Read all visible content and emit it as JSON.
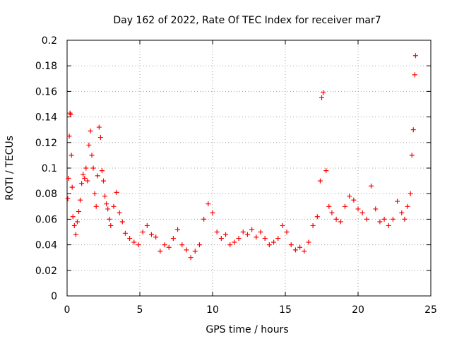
{
  "chart_data": {
    "type": "scatter",
    "title": "Day 162 of 2022, Rate Of TEC Index for receiver mar7",
    "xlabel": "GPS time / hours",
    "ylabel": "ROTI / TECUs",
    "xlim": [
      0,
      25
    ],
    "ylim": [
      0,
      0.2
    ],
    "xticks": [
      0,
      5,
      10,
      15,
      20,
      25
    ],
    "xtick_labels": [
      "0",
      "5",
      "10",
      "15",
      "20",
      "25"
    ],
    "yticks": [
      0,
      0.02,
      0.04,
      0.06,
      0.08,
      0.1,
      0.12,
      0.14,
      0.16,
      0.18,
      0.2
    ],
    "ytick_labels": [
      "0",
      "0.02",
      "0.04",
      "0.06",
      "0.08",
      "0.1",
      "0.12",
      "0.14",
      "0.16",
      "0.18",
      "0.2"
    ],
    "grid": true,
    "marker": "+",
    "color": "#ff0000",
    "series": [
      {
        "name": "ROTI",
        "x": [
          0.05,
          0.1,
          0.15,
          0.2,
          0.25,
          0.3,
          0.35,
          0.4,
          0.5,
          0.6,
          0.7,
          0.8,
          0.9,
          1.0,
          1.1,
          1.2,
          1.3,
          1.4,
          1.5,
          1.6,
          1.7,
          1.8,
          1.9,
          2.0,
          2.1,
          2.2,
          2.3,
          2.4,
          2.5,
          2.6,
          2.7,
          2.8,
          2.9,
          3.0,
          3.2,
          3.4,
          3.6,
          3.8,
          4.0,
          4.3,
          4.6,
          4.9,
          5.2,
          5.5,
          5.8,
          6.1,
          6.4,
          6.7,
          7.0,
          7.3,
          7.6,
          7.9,
          8.2,
          8.5,
          8.8,
          9.1,
          9.4,
          9.7,
          10.0,
          10.3,
          10.6,
          10.9,
          11.2,
          11.5,
          11.8,
          12.1,
          12.4,
          12.7,
          13.0,
          13.3,
          13.6,
          13.9,
          14.2,
          14.5,
          14.8,
          15.1,
          15.4,
          15.7,
          16.0,
          16.3,
          16.6,
          16.9,
          17.2,
          17.4,
          17.5,
          17.6,
          17.8,
          18.0,
          18.2,
          18.5,
          18.8,
          19.1,
          19.4,
          19.7,
          20.0,
          20.3,
          20.6,
          20.9,
          21.2,
          21.5,
          21.8,
          22.1,
          22.4,
          22.7,
          23.0,
          23.2,
          23.4,
          23.6,
          23.7,
          23.8,
          23.9,
          23.95
        ],
        "y": [
          0.076,
          0.092,
          0.125,
          0.143,
          0.142,
          0.11,
          0.085,
          0.062,
          0.055,
          0.048,
          0.058,
          0.066,
          0.075,
          0.088,
          0.095,
          0.092,
          0.1,
          0.09,
          0.118,
          0.129,
          0.11,
          0.1,
          0.08,
          0.07,
          0.094,
          0.132,
          0.124,
          0.098,
          0.09,
          0.078,
          0.072,
          0.068,
          0.06,
          0.055,
          0.07,
          0.081,
          0.065,
          0.058,
          0.049,
          0.045,
          0.042,
          0.04,
          0.05,
          0.055,
          0.048,
          0.046,
          0.035,
          0.04,
          0.038,
          0.045,
          0.052,
          0.04,
          0.036,
          0.03,
          0.035,
          0.04,
          0.06,
          0.072,
          0.065,
          0.05,
          0.045,
          0.048,
          0.04,
          0.042,
          0.045,
          0.05,
          0.048,
          0.052,
          0.046,
          0.05,
          0.045,
          0.04,
          0.042,
          0.045,
          0.055,
          0.05,
          0.04,
          0.036,
          0.038,
          0.035,
          0.042,
          0.055,
          0.062,
          0.09,
          0.155,
          0.159,
          0.098,
          0.07,
          0.065,
          0.06,
          0.058,
          0.07,
          0.078,
          0.075,
          0.068,
          0.065,
          0.06,
          0.086,
          0.068,
          0.058,
          0.06,
          0.055,
          0.06,
          0.074,
          0.065,
          0.06,
          0.07,
          0.08,
          0.11,
          0.13,
          0.173,
          0.188
        ]
      }
    ]
  }
}
